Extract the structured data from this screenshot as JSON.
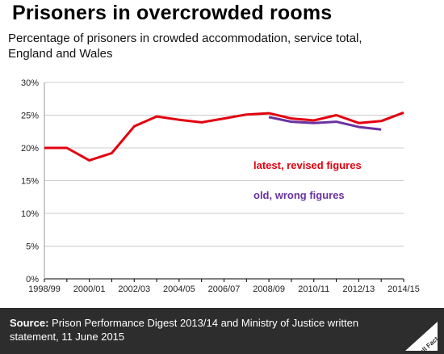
{
  "header": {
    "title": "Prisoners in overcrowded rooms",
    "subtitle": "Percentage of prisoners in crowded accommodation, service total, England and Wales"
  },
  "footer": {
    "source_label": "Source:",
    "source_text": " Prison Performance Digest 2013/14 and Ministry of Justice written statement, 11 June 2015",
    "logo_text": "Full Fact"
  },
  "colors": {
    "latest": "#e3000f",
    "old": "#6a33a0",
    "grid": "#cccccc",
    "axis": "#000000",
    "footer_bg": "#2d2d2d"
  },
  "chart_data": {
    "type": "line",
    "title": "Prisoners in overcrowded rooms",
    "subtitle": "Percentage of prisoners in crowded accommodation, service total, England and Wales",
    "xlabel": "",
    "ylabel": "",
    "x_ticks": [
      "1998/99",
      "2000/01",
      "2002/03",
      "2004/05",
      "2006/07",
      "2008/09",
      "2010/11",
      "2012/13",
      "2014/15"
    ],
    "y_ticks": [
      "0%",
      "5%",
      "10%",
      "15%",
      "20%",
      "25%",
      "30%"
    ],
    "ylim": [
      0,
      30
    ],
    "grid": true,
    "legend": "inline annotations",
    "series": [
      {
        "name": "latest, revised figures",
        "color": "#e3000f",
        "x": [
          "1998/99",
          "1999/00",
          "2000/01",
          "2001/02",
          "2002/03",
          "2003/04",
          "2004/05",
          "2005/06",
          "2006/07",
          "2007/08",
          "2008/09",
          "2009/10",
          "2010/11",
          "2011/12",
          "2012/13",
          "2013/14",
          "2014/15"
        ],
        "values": [
          20.0,
          20.0,
          18.1,
          19.2,
          23.3,
          24.8,
          24.3,
          23.9,
          24.5,
          25.1,
          25.3,
          24.5,
          24.2,
          25.0,
          23.8,
          24.1,
          25.4
        ]
      },
      {
        "name": "old, wrong figures",
        "color": "#6a33a0",
        "x": [
          "2008/09",
          "2009/10",
          "2010/11",
          "2011/12",
          "2012/13",
          "2013/14"
        ],
        "values": [
          24.7,
          24.0,
          23.8,
          24.0,
          23.2,
          22.8
        ]
      }
    ]
  }
}
